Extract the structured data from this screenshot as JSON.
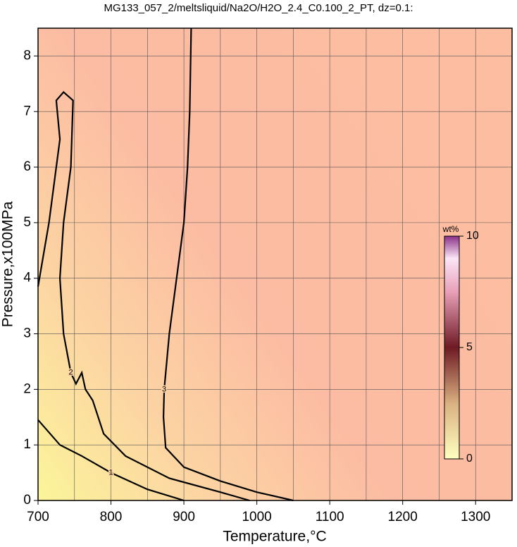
{
  "chart_data": {
    "type": "contour",
    "title": "MG133_057_2/meltsliquid/Na2O/H2O_2.4_C0.100_2_PT, dz=0.1:",
    "x_label": "Temperature,°C",
    "y_label": "Pressure,x100MPa",
    "xlim": [
      700,
      1350
    ],
    "ylim": [
      0,
      8.5
    ],
    "xticks": [
      700,
      800,
      900,
      1000,
      1100,
      1200,
      1300
    ],
    "yticks": [
      0,
      1,
      2,
      3,
      4,
      5,
      6,
      7,
      8
    ],
    "xgrid": [
      700,
      750,
      800,
      850,
      900,
      950,
      1000,
      1050,
      1100,
      1150,
      1200,
      1250,
      1300
    ],
    "ygrid": [
      1,
      2,
      3,
      4,
      5,
      6,
      7,
      8
    ],
    "grid": true,
    "contours": [
      {
        "level": 1,
        "x": [
          700,
          730,
          760,
          800,
          850,
          900
        ],
        "y": [
          1.45,
          1.0,
          0.8,
          0.5,
          0.2,
          0
        ]
      },
      {
        "level": 2,
        "x": [
          700,
          715,
          730,
          725,
          735,
          748,
          745,
          735,
          730,
          735,
          745,
          752,
          760,
          765,
          775,
          790,
          820,
          880,
          950,
          990
        ],
        "y": [
          3.85,
          5,
          6.5,
          7.2,
          7.35,
          7.2,
          6,
          5,
          4,
          3,
          2.3,
          2.1,
          2.3,
          2.0,
          1.8,
          1.2,
          0.8,
          0.4,
          0.15,
          0
        ]
      },
      {
        "level": 3,
        "x": [
          910,
          908,
          905,
          900,
          890,
          880,
          873,
          872,
          875,
          900,
          950,
          1000,
          1050
        ],
        "y": [
          8.5,
          7,
          6,
          5,
          4,
          3,
          2,
          1.5,
          0.95,
          0.6,
          0.35,
          0.15,
          0
        ]
      }
    ],
    "colorbar": {
      "label": "wt%",
      "lim": [
        0,
        10
      ],
      "ticks": [
        0,
        5,
        10
      ]
    }
  }
}
